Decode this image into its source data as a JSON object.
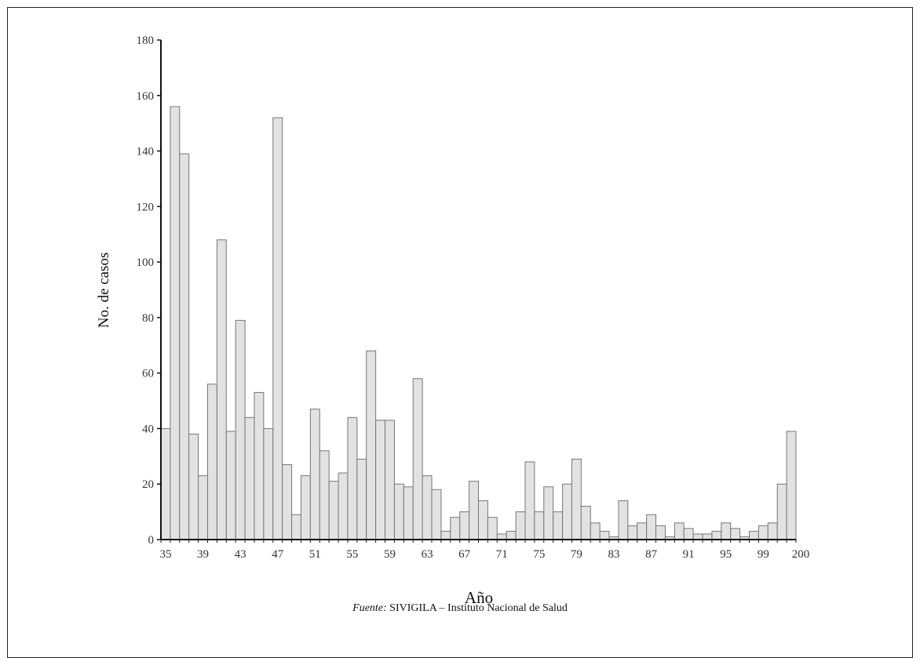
{
  "chart_data": {
    "type": "bar",
    "xlabel": "Año",
    "ylabel": "No. de casos",
    "ylim": [
      0,
      180
    ],
    "yticks": [
      0,
      20,
      40,
      60,
      80,
      100,
      120,
      140,
      160,
      180
    ],
    "categories": [
      "35",
      "36",
      "37",
      "38",
      "39",
      "40",
      "41",
      "42",
      "43",
      "44",
      "45",
      "46",
      "47",
      "48",
      "49",
      "50",
      "51",
      "52",
      "53",
      "54",
      "55",
      "56",
      "57",
      "58",
      "59",
      "60",
      "61",
      "62",
      "63",
      "64",
      "65",
      "66",
      "67",
      "68",
      "69",
      "70",
      "71",
      "72",
      "73",
      "74",
      "75",
      "76",
      "77",
      "78",
      "79",
      "80",
      "81",
      "82",
      "83",
      "84",
      "85",
      "86",
      "87",
      "88",
      "89",
      "90",
      "91",
      "92",
      "93",
      "94",
      "95",
      "96",
      "97",
      "98",
      "99",
      "00",
      "01",
      "02"
    ],
    "tick_labels": [
      "35",
      "39",
      "43",
      "47",
      "51",
      "55",
      "59",
      "63",
      "67",
      "71",
      "75",
      "79",
      "83",
      "87",
      "91",
      "95",
      "99",
      "200"
    ],
    "values": [
      40,
      156,
      139,
      38,
      23,
      56,
      108,
      39,
      79,
      44,
      53,
      40,
      152,
      27,
      9,
      23,
      47,
      32,
      21,
      24,
      44,
      29,
      68,
      43,
      43,
      20,
      19,
      58,
      23,
      18,
      3,
      8,
      10,
      21,
      14,
      8,
      2,
      3,
      10,
      28,
      10,
      19,
      10,
      20,
      29,
      12,
      6,
      3,
      1,
      14,
      5,
      6,
      9,
      5,
      1,
      6,
      4,
      2,
      2,
      3,
      6,
      4,
      1,
      3,
      5,
      6,
      20,
      39
    ],
    "grid": false,
    "legend": "none",
    "bar_color": "#e2e2e2",
    "bar_edge_color": "#777777"
  },
  "footer": {
    "source_label": "Fuente:",
    "source_text": "SIVIGILA – Instituto Nacional de Salud"
  }
}
